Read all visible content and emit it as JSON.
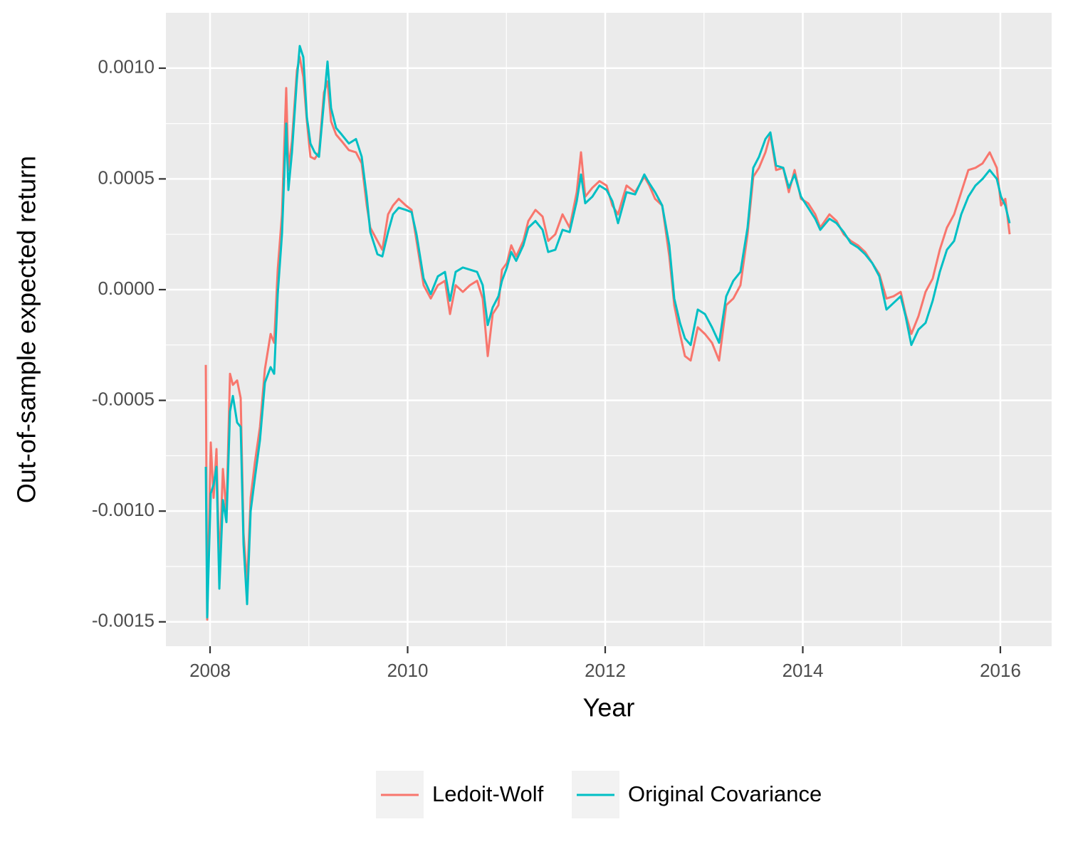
{
  "chart_data": {
    "type": "line",
    "xlabel": "Year",
    "ylabel": "Out-of-sample expected return",
    "xlim": [
      2007.553,
      2016.519
    ],
    "ylim": [
      -0.00161,
      0.00125
    ],
    "xticks": [
      2008,
      2010,
      2012,
      2014,
      2016
    ],
    "x_minor_ticks": [
      2009,
      2011,
      2013,
      2015
    ],
    "yticks": [
      {
        "value": -0.0015,
        "label": "-0.0015"
      },
      {
        "value": -0.001,
        "label": "-0.0010"
      },
      {
        "value": -0.0005,
        "label": "-0.0005"
      },
      {
        "value": 0,
        "label": "0.0000"
      },
      {
        "value": 0.0005,
        "label": "0.0005"
      },
      {
        "value": 0.001,
        "label": "0.0010"
      }
    ],
    "y_minor_ticks": [
      -0.00125,
      -0.00075,
      -0.00025,
      0.00025,
      0.00075
    ],
    "grid": true,
    "legend": "bottom",
    "x": [
      2007.957,
      2007.971,
      2008.007,
      2008.036,
      2008.065,
      2008.094,
      2008.13,
      2008.166,
      2008.202,
      2008.231,
      2008.274,
      2008.31,
      2008.339,
      2008.375,
      2008.411,
      2008.454,
      2008.505,
      2008.555,
      2008.613,
      2008.649,
      2008.685,
      2008.728,
      2008.771,
      2008.793,
      2008.829,
      2008.879,
      2008.908,
      2008.944,
      2008.98,
      2009.016,
      2009.059,
      2009.103,
      2009.153,
      2009.189,
      2009.225,
      2009.276,
      2009.333,
      2009.405,
      2009.477,
      2009.535,
      2009.586,
      2009.622,
      2009.694,
      2009.744,
      2009.802,
      2009.852,
      2009.91,
      2009.982,
      2010.04,
      2010.09,
      2010.162,
      2010.234,
      2010.306,
      2010.378,
      2010.429,
      2010.486,
      2010.559,
      2010.631,
      2010.703,
      2010.76,
      2010.811,
      2010.861,
      2010.919,
      2010.955,
      2011.005,
      2011.049,
      2011.099,
      2011.171,
      2011.222,
      2011.294,
      2011.366,
      2011.423,
      2011.495,
      2011.568,
      2011.64,
      2011.712,
      2011.755,
      2011.798,
      2011.87,
      2011.942,
      2012.014,
      2012.072,
      2012.13,
      2012.216,
      2012.303,
      2012.396,
      2012.447,
      2012.505,
      2012.577,
      2012.649,
      2012.699,
      2012.757,
      2012.807,
      2012.865,
      2012.937,
      2013.009,
      2013.081,
      2013.153,
      2013.225,
      2013.297,
      2013.369,
      2013.441,
      2013.499,
      2013.557,
      2013.622,
      2013.672,
      2013.73,
      2013.802,
      2013.859,
      2013.917,
      2013.982,
      2014.054,
      2014.126,
      2014.177,
      2014.27,
      2014.342,
      2014.414,
      2014.486,
      2014.559,
      2014.631,
      2014.703,
      2014.775,
      2014.847,
      2014.919,
      2014.991,
      2015.041,
      2015.099,
      2015.171,
      2015.243,
      2015.315,
      2015.387,
      2015.459,
      2015.532,
      2015.604,
      2015.676,
      2015.748,
      2015.82,
      2015.892,
      2015.964,
      2016.007,
      2016.05,
      2016.094
    ],
    "series": [
      {
        "name": "Ledoit-Wolf",
        "color": "#F8766D",
        "values": [
          -0.00034,
          -0.00149,
          -0.00069,
          -0.00094,
          -0.00072,
          -0.00126,
          -0.00081,
          -0.00101,
          -0.00038,
          -0.00043,
          -0.00041,
          -0.00049,
          -0.0011,
          -0.00133,
          -0.00094,
          -0.00078,
          -0.00062,
          -0.00036,
          -0.0002,
          -0.00024,
          9e-05,
          0.00034,
          0.00091,
          0.00054,
          0.00067,
          0.00099,
          0.00105,
          0.00096,
          0.00076,
          0.0006,
          0.00059,
          0.00062,
          0.00089,
          0.00094,
          0.00076,
          0.0007,
          0.00067,
          0.00063,
          0.00062,
          0.00057,
          0.00038,
          0.00028,
          0.00022,
          0.00018,
          0.00034,
          0.00038,
          0.00041,
          0.00038,
          0.00036,
          0.00022,
          2e-05,
          -4e-05,
          2e-05,
          4e-05,
          -0.00011,
          2e-05,
          -1e-05,
          2e-05,
          4e-05,
          -4e-05,
          -0.0003,
          -0.00011,
          -7e-05,
          9e-05,
          0.00012,
          0.0002,
          0.00015,
          0.00022,
          0.00031,
          0.00036,
          0.00033,
          0.00022,
          0.00025,
          0.00034,
          0.00028,
          0.00044,
          0.00062,
          0.00042,
          0.00046,
          0.00049,
          0.00047,
          0.00038,
          0.00034,
          0.00047,
          0.00044,
          0.00051,
          0.00047,
          0.00041,
          0.00038,
          0.00015,
          -7e-05,
          -0.0002,
          -0.0003,
          -0.00032,
          -0.00017,
          -0.0002,
          -0.00024,
          -0.00032,
          -7e-05,
          -4e-05,
          2e-05,
          0.00025,
          0.00051,
          0.00055,
          0.00062,
          0.0007,
          0.00054,
          0.00055,
          0.00044,
          0.00054,
          0.00041,
          0.00039,
          0.00034,
          0.00028,
          0.00034,
          0.00031,
          0.00025,
          0.00022,
          0.0002,
          0.00017,
          0.00012,
          7e-05,
          -4e-05,
          -3e-05,
          -1e-05,
          -0.00011,
          -0.0002,
          -0.00012,
          -1e-05,
          5e-05,
          0.00018,
          0.00028,
          0.00034,
          0.00044,
          0.00054,
          0.00055,
          0.00057,
          0.00062,
          0.00055,
          0.00038,
          0.00041,
          0.00025
        ]
      },
      {
        "name": "Original Covariance",
        "color": "#00BFC4",
        "values": [
          -0.0008,
          -0.00148,
          -0.00092,
          -0.00088,
          -0.0008,
          -0.00135,
          -0.00095,
          -0.00105,
          -0.00055,
          -0.00048,
          -0.0006,
          -0.00062,
          -0.00115,
          -0.00142,
          -0.001,
          -0.00085,
          -0.00068,
          -0.00042,
          -0.00035,
          -0.00038,
          -2e-05,
          0.00025,
          0.00075,
          0.00045,
          0.00062,
          0.00095,
          0.0011,
          0.00105,
          0.00078,
          0.00066,
          0.00062,
          0.0006,
          0.00085,
          0.00103,
          0.00082,
          0.00073,
          0.0007,
          0.00066,
          0.00068,
          0.0006,
          0.00042,
          0.00026,
          0.00016,
          0.00015,
          0.00026,
          0.00034,
          0.00037,
          0.00036,
          0.00035,
          0.00025,
          5e-05,
          -2e-05,
          6e-05,
          8e-05,
          -5e-05,
          8e-05,
          0.0001,
          9e-05,
          8e-05,
          2e-05,
          -0.00016,
          -8e-05,
          -3e-05,
          4e-05,
          0.0001,
          0.00017,
          0.00013,
          0.0002,
          0.00028,
          0.00031,
          0.00027,
          0.00017,
          0.00018,
          0.00027,
          0.00026,
          0.0004,
          0.00052,
          0.00039,
          0.00042,
          0.00047,
          0.00045,
          0.0004,
          0.0003,
          0.00044,
          0.00043,
          0.00052,
          0.00048,
          0.00044,
          0.00038,
          0.0002,
          -4e-05,
          -0.00015,
          -0.00022,
          -0.00025,
          -9e-05,
          -0.00011,
          -0.00017,
          -0.00024,
          -3e-05,
          4e-05,
          8e-05,
          0.00028,
          0.00055,
          0.0006,
          0.00068,
          0.00071,
          0.00056,
          0.00055,
          0.00046,
          0.00052,
          0.00042,
          0.00037,
          0.00032,
          0.00027,
          0.00032,
          0.0003,
          0.00026,
          0.00021,
          0.00019,
          0.00016,
          0.00012,
          6e-05,
          -9e-05,
          -6e-05,
          -3e-05,
          -0.00012,
          -0.00025,
          -0.00018,
          -0.00015,
          -5e-05,
          8e-05,
          0.00018,
          0.00022,
          0.00034,
          0.00042,
          0.00047,
          0.0005,
          0.00054,
          0.0005,
          0.00042,
          0.00038,
          0.0003
        ]
      }
    ]
  }
}
